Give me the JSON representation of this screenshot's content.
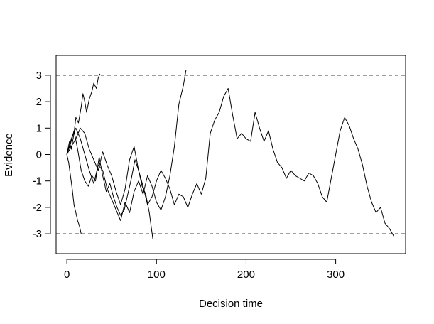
{
  "chart_data": {
    "type": "line",
    "title": "",
    "xlabel": "Decision time",
    "ylabel": "Evidence",
    "xlim": [
      -12,
      378
    ],
    "ylim": [
      -3.75,
      3.75
    ],
    "xticks": [
      0,
      100,
      200,
      300
    ],
    "yticks": [
      3,
      2,
      1,
      0,
      -1,
      -2,
      -3
    ],
    "grid": false,
    "legend": "none",
    "boundaries": [
      3,
      -3
    ],
    "line_color": "#000000",
    "series": [
      {
        "x": [
          0,
          2,
          4,
          6,
          8,
          10,
          12,
          14,
          16
        ],
        "y": [
          0.0,
          -0.3,
          -0.8,
          -1.3,
          -1.9,
          -2.2,
          -2.5,
          -2.7,
          -3.0
        ]
      },
      {
        "x": [
          0,
          3,
          5,
          8,
          10,
          13,
          16,
          18,
          20,
          22,
          25,
          28,
          30,
          33,
          35,
          37
        ],
        "y": [
          0.0,
          0.5,
          0.2,
          0.8,
          1.4,
          1.2,
          1.8,
          2.3,
          2.0,
          1.6,
          2.1,
          2.4,
          2.7,
          2.5,
          2.9,
          3.05
        ]
      },
      {
        "x": [
          0,
          5,
          10,
          15,
          20,
          25,
          30,
          35,
          40,
          45,
          50,
          55,
          60,
          65,
          70,
          75,
          80,
          85,
          90,
          95,
          100,
          105,
          110,
          115,
          120,
          125,
          130,
          133
        ],
        "y": [
          0.0,
          0.6,
          1.0,
          0.6,
          0.0,
          -0.6,
          -1.1,
          -0.4,
          -0.6,
          -1.3,
          -1.7,
          -2.1,
          -2.5,
          -1.8,
          -2.2,
          -1.4,
          -1.0,
          -1.5,
          -0.8,
          -1.2,
          -1.8,
          -2.1,
          -1.6,
          -0.8,
          0.3,
          1.9,
          2.6,
          3.2
        ]
      },
      {
        "x": [
          0,
          4,
          8,
          12,
          16,
          20,
          24,
          28,
          32,
          36,
          40,
          44,
          48,
          52,
          56,
          60,
          64,
          68,
          72,
          76,
          80,
          84,
          88,
          92,
          96
        ],
        "y": [
          0.0,
          0.4,
          0.9,
          0.2,
          -0.6,
          -1.0,
          -1.2,
          -0.8,
          -1.0,
          -0.1,
          -0.8,
          -1.4,
          -1.1,
          -1.6,
          -2.0,
          -2.3,
          -2.1,
          -1.5,
          -0.9,
          -0.2,
          -0.6,
          -1.2,
          -1.5,
          -2.2,
          -3.2
        ]
      },
      {
        "x": [
          0,
          5,
          10,
          15,
          20,
          25,
          30,
          35,
          40,
          45,
          50,
          55,
          60,
          65,
          70,
          75,
          80,
          85,
          90,
          95,
          100,
          105,
          110,
          115,
          120,
          125,
          130,
          135,
          140,
          145,
          150,
          155,
          160,
          165,
          170,
          175,
          180,
          185,
          190,
          195,
          200,
          205,
          210,
          215,
          220,
          225,
          230,
          235,
          240,
          245,
          250,
          255,
          260,
          265,
          270,
          275,
          280,
          285,
          290,
          295,
          300,
          305,
          310,
          315,
          320,
          325,
          330,
          335,
          340,
          345,
          350,
          355,
          360,
          365
        ],
        "y": [
          0.0,
          0.3,
          0.6,
          1.0,
          0.8,
          0.2,
          -0.2,
          -0.6,
          0.1,
          -0.4,
          -0.8,
          -1.4,
          -1.9,
          -1.3,
          -0.2,
          0.3,
          -0.6,
          -1.2,
          -1.9,
          -1.6,
          -1.0,
          -0.6,
          -0.9,
          -1.3,
          -1.9,
          -1.5,
          -1.6,
          -2.0,
          -1.5,
          -1.1,
          -1.5,
          -0.9,
          0.8,
          1.3,
          1.6,
          2.2,
          2.5,
          1.5,
          0.6,
          0.8,
          0.6,
          0.5,
          1.6,
          1.0,
          0.5,
          0.9,
          0.2,
          -0.3,
          -0.5,
          -0.9,
          -0.6,
          -0.8,
          -0.9,
          -1.0,
          -0.7,
          -0.8,
          -1.1,
          -1.6,
          -1.8,
          -0.9,
          0.0,
          0.9,
          1.4,
          1.1,
          0.6,
          0.2,
          -0.4,
          -1.2,
          -1.8,
          -2.2,
          -2.0,
          -2.6,
          -2.8,
          -3.1
        ]
      }
    ]
  }
}
